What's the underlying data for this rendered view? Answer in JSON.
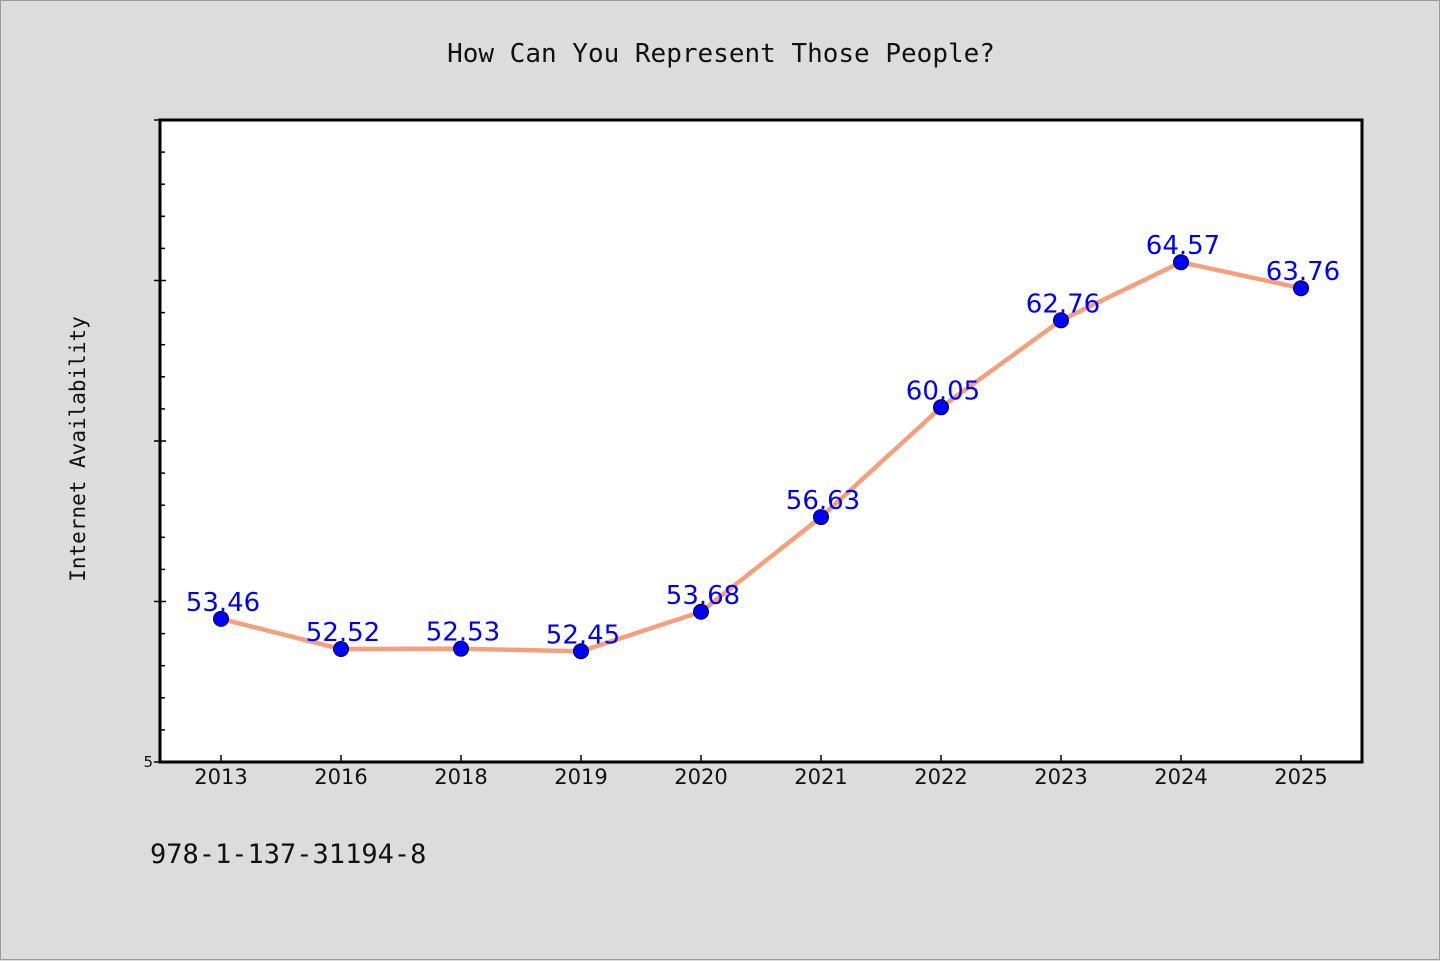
{
  "footer_code": "978-1-137-31194-8",
  "colors": {
    "background": "#dcdcdc",
    "plot_background": "#ffffff",
    "line": "#f4a07c",
    "marker": "#0000ff",
    "label": "#0000ff"
  },
  "chart_data": {
    "type": "line",
    "title": "How Can You Represent Those People?",
    "xlabel": "",
    "ylabel": "Internet Availability",
    "categories": [
      "2013",
      "2016",
      "2018",
      "2019",
      "2020",
      "2021",
      "2022",
      "2023",
      "2024",
      "2025"
    ],
    "series": [
      {
        "values": [
          53.46,
          52.52,
          52.53,
          52.45,
          53.68,
          56.63,
          60.05,
          62.76,
          64.57,
          63.76
        ],
        "labels": [
          "53.46",
          "52.52",
          "52.53",
          "52.45",
          "53.68",
          "56.63",
          "60.05",
          "62.76",
          "64.57",
          "63.76"
        ]
      }
    ],
    "ylim": [
      49.0,
      69.0
    ],
    "yticks": [
      "5"
    ],
    "grid": false,
    "legend": "none"
  }
}
